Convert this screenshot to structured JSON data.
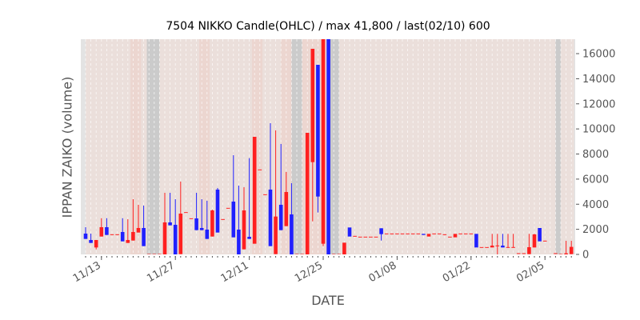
{
  "chart_data": {
    "type": "candlestick",
    "title": "7504 NIKKO Candle(OHLC) / max 41,800 / last(02/10) 600",
    "xlabel": "DATE",
    "ylabel": "IPPAN ZAIKO (volume)",
    "ylim": [
      0,
      17150
    ],
    "yticks": [
      0,
      2000,
      4000,
      6000,
      8000,
      10000,
      12000,
      14000,
      16000
    ],
    "ytick_labels": [
      "0",
      "2000",
      "4000",
      "6000",
      "8000",
      "10000",
      "12000",
      "14000",
      "16000"
    ],
    "xtick_labels": [
      "11/13",
      "11/27",
      "12/11",
      "12/25",
      "01/08",
      "01/22",
      "02/05"
    ],
    "xtick_day_index": [
      3,
      17,
      31,
      45,
      59,
      73,
      87
    ],
    "first_date": "11/10",
    "up_color": "#ff2020",
    "down_color": "#2020ff",
    "grey_bands": [
      [
        -0.9,
        0
      ],
      [
        11.6,
        14.0
      ],
      [
        39,
        41
      ],
      [
        45.9,
        48
      ],
      [
        89,
        90
      ],
      [
        92.5,
        93.3
      ]
    ],
    "pink_bands": [
      [
        8.5,
        10.5
      ],
      [
        21.5,
        23.5
      ],
      [
        31.5,
        33.5
      ],
      [
        37,
        39
      ],
      [
        41,
        45.9
      ]
    ],
    "ohlc": [
      [
        1658,
        2168,
        1233,
        1233
      ],
      [
        1148,
        1658,
        914,
        914
      ],
      [
        553,
        1148,
        404,
        1148
      ],
      [
        1424,
        2890,
        1424,
        2168
      ],
      [
        2168,
        2890,
        1551,
        1551
      ],
      [
        1573,
        1573,
        1573,
        1573
      ],
      [
        1573,
        1573,
        1573,
        1573
      ],
      [
        1785,
        2890,
        1041,
        1041
      ],
      [
        914,
        2805,
        914,
        1148
      ],
      [
        1105,
        4399,
        1105,
        1785
      ],
      [
        1743,
        3953,
        1743,
        2104
      ],
      [
        2104,
        3889,
        659,
        659
      ],
      [
        0,
        0,
        0,
        0
      ],
      [
        0,
        0,
        0,
        0
      ],
      [
        0,
        0,
        0,
        0
      ],
      [
        0,
        4909,
        0,
        2550
      ],
      [
        2550,
        4909,
        2316,
        2316
      ],
      [
        2359,
        4399,
        0,
        0
      ],
      [
        21,
        5801,
        21,
        3251
      ],
      [
        3336,
        3336,
        3336,
        3336
      ],
      [
        2848,
        2848,
        2848,
        2848
      ],
      [
        2869,
        4909,
        1934,
        1934
      ],
      [
        2104,
        4399,
        1934,
        1934
      ],
      [
        1976,
        4271,
        1233,
        1233
      ],
      [
        1424,
        3570,
        1424,
        3506
      ],
      [
        5164,
        5291,
        1743,
        1743
      ],
      [
        2784,
        2784,
        2784,
        2784
      ],
      [
        3676,
        3676,
        3676,
        3676
      ],
      [
        4208,
        7905,
        1360,
        1360
      ],
      [
        1976,
        5483,
        0,
        0
      ],
      [
        404,
        5355,
        404,
        3506
      ],
      [
        1403,
        7671,
        1233,
        1233
      ],
      [
        850,
        9371,
        850,
        9371
      ],
      [
        6736,
        6736,
        6736,
        6736
      ],
      [
        4760,
        4760,
        4760,
        4760
      ],
      [
        5164,
        10455,
        659,
        659
      ],
      [
        21,
        9881,
        21,
        3018
      ],
      [
        3953,
        8798,
        1934,
        1934
      ],
      [
        2253,
        6566,
        2253,
        4973
      ],
      [
        3188,
        5674,
        0,
        0
      ],
      [
        0,
        0,
        0,
        0
      ],
      [
        0,
        0,
        0,
        0
      ],
      [
        0,
        9690,
        0,
        9690
      ],
      [
        7353,
        16384,
        2635,
        16384
      ],
      [
        15109,
        15109,
        3336,
        4611
      ],
      [
        850,
        41800,
        659,
        30000
      ],
      [
        30000,
        41800,
        0,
        0
      ],
      [
        0,
        0,
        0,
        0
      ],
      [
        0,
        0,
        0,
        0
      ],
      [
        0,
        935,
        0,
        935
      ],
      [
        2146,
        2146,
        1424,
        1424
      ],
      [
        1445,
        1445,
        1445,
        1445
      ],
      [
        1381,
        1381,
        1381,
        1381
      ],
      [
        1381,
        1381,
        1381,
        1381
      ],
      [
        1381,
        1381,
        1381,
        1381
      ],
      [
        1381,
        1381,
        1381,
        1381
      ],
      [
        2083,
        2083,
        1105,
        1615
      ],
      [
        1636,
        1636,
        1636,
        1636
      ],
      [
        1636,
        1636,
        1636,
        1636
      ],
      [
        1636,
        1636,
        1636,
        1636
      ],
      [
        1636,
        1636,
        1636,
        1636
      ],
      [
        1636,
        1636,
        1636,
        1636
      ],
      [
        1636,
        1636,
        1636,
        1636
      ],
      [
        1636,
        1636,
        1636,
        1636
      ],
      [
        1636,
        1636,
        1551,
        1551
      ],
      [
        1424,
        1636,
        1424,
        1636
      ],
      [
        1636,
        1636,
        1636,
        1636
      ],
      [
        1636,
        1636,
        1636,
        1636
      ],
      [
        1573,
        1573,
        1573,
        1573
      ],
      [
        1381,
        1381,
        1381,
        1381
      ],
      [
        1360,
        1636,
        1360,
        1636
      ],
      [
        1636,
        1636,
        1636,
        1636
      ],
      [
        1636,
        1636,
        1636,
        1636
      ],
      [
        1636,
        1636,
        1636,
        1636
      ],
      [
        1636,
        1636,
        553,
        553
      ],
      [
        553,
        553,
        553,
        553
      ],
      [
        553,
        553,
        553,
        553
      ],
      [
        553,
        1636,
        553,
        701
      ],
      [
        680,
        1636,
        0,
        680
      ],
      [
        701,
        1636,
        553,
        553
      ],
      [
        553,
        1636,
        553,
        553
      ],
      [
        553,
        1636,
        553,
        553
      ],
      [
        64,
        64,
        64,
        64
      ],
      [
        64,
        64,
        64,
        64
      ],
      [
        21,
        1636,
        21,
        574
      ],
      [
        553,
        1636,
        553,
        1594
      ],
      [
        2104,
        2104,
        1041,
        1041
      ],
      [
        1063,
        1063,
        1063,
        1063
      ],
      null,
      [
        64,
        64,
        64,
        64
      ],
      [
        0,
        0,
        0,
        0
      ],
      [
        0,
        1084,
        0,
        85
      ],
      [
        21,
        1084,
        21,
        600
      ]
    ]
  }
}
